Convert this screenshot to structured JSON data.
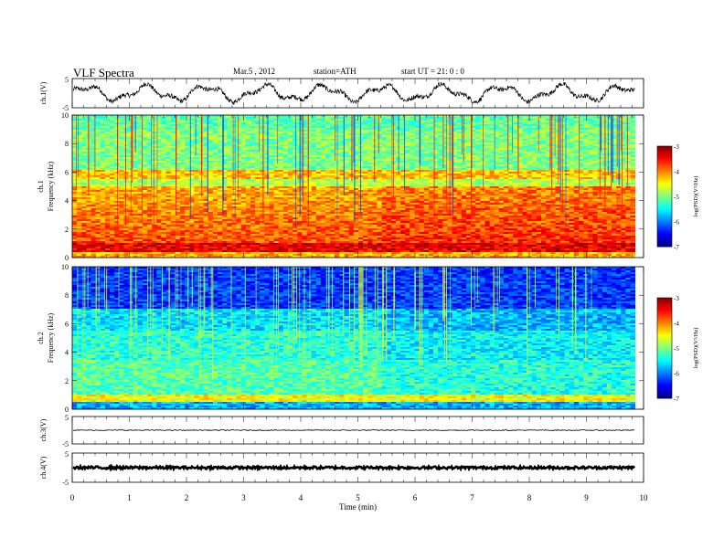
{
  "header": {
    "title": "VLF  Spectra",
    "date": "Mar.5  , 2012",
    "station": "station=ATH",
    "start": "start  UT  =   21: 0  : 0"
  },
  "chart_data": [
    {
      "type": "line",
      "panel": "ch1-waveform",
      "ylabel": "ch.1(V)",
      "ylim": [
        -5,
        5
      ],
      "yticks": [
        "5",
        "-5"
      ],
      "x_range_min": [
        0,
        9.85
      ],
      "description_values": "oscillating trace roughly between -4 and 4 V"
    },
    {
      "type": "heatmap",
      "panel": "ch1-spectrogram",
      "ylabel_top": "ch.1",
      "ylabel": "Frequency  (kHz)",
      "ylim": [
        0,
        10
      ],
      "yticks": [
        "0",
        "2",
        "4",
        "6",
        "8",
        "10"
      ],
      "colorbar_label": "log(PSD)(V²/Hz)",
      "colorbar_range": [
        -7,
        -3
      ],
      "colorbar_ticks": [
        "-3",
        "-4",
        "-5",
        "-6",
        "-7"
      ]
    },
    {
      "type": "heatmap",
      "panel": "ch2-spectrogram",
      "ylabel_top": "ch.2",
      "ylabel": "Frequency  (kHz)",
      "ylim": [
        0,
        10
      ],
      "yticks": [
        "0",
        "2",
        "4",
        "6",
        "8",
        "10"
      ],
      "colorbar_label": "log(PSD)(V²/Hz)",
      "colorbar_range": [
        -7,
        -3
      ],
      "colorbar_ticks": [
        "-3",
        "-4",
        "-5",
        "-6",
        "-7"
      ]
    },
    {
      "type": "line",
      "panel": "ch3-waveform",
      "ylabel": "ch.3(V)",
      "ylim": [
        -5,
        5
      ],
      "yticks": [
        "5",
        "-5"
      ],
      "level": 0
    },
    {
      "type": "line",
      "panel": "ch4-waveform",
      "ylabel": "ch.4(V)",
      "ylim": [
        -5,
        5
      ],
      "yticks": [
        "5",
        "-5"
      ],
      "level": 0
    }
  ],
  "xaxis": {
    "label": "Time  (min)",
    "ticks": [
      "0",
      "1",
      "2",
      "3",
      "4",
      "5",
      "6",
      "7",
      "8",
      "9",
      "10"
    ],
    "xlim": [
      0,
      10
    ]
  }
}
